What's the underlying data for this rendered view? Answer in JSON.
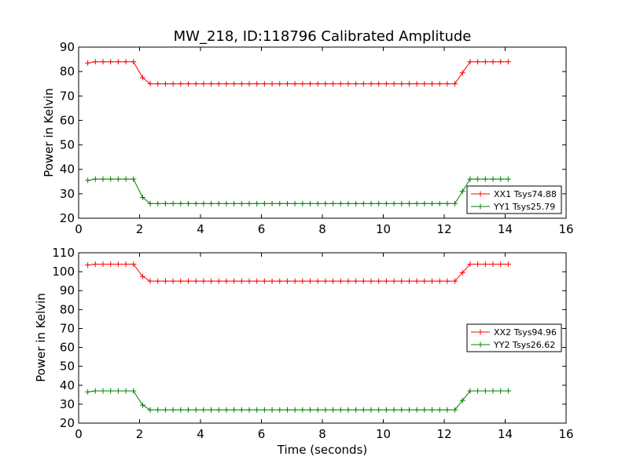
{
  "chart_data": [
    {
      "type": "line",
      "title": "MW_218, ID:118796 Calibrated Amplitude",
      "xlabel": "",
      "ylabel": "Power in Kelvin",
      "xlim": [
        0,
        16
      ],
      "ylim": [
        20,
        90
      ],
      "xticks": [
        0,
        2,
        4,
        6,
        8,
        10,
        12,
        14,
        16
      ],
      "yticks": [
        20,
        30,
        40,
        50,
        60,
        70,
        80,
        90
      ],
      "grid": false,
      "legend_position": "lower-right",
      "x": [
        0.3,
        0.55,
        0.8,
        1.05,
        1.3,
        1.55,
        1.8,
        2.1,
        2.35,
        2.6,
        2.85,
        3.1,
        3.35,
        3.6,
        3.85,
        4.1,
        4.35,
        4.6,
        4.85,
        5.1,
        5.35,
        5.6,
        5.85,
        6.1,
        6.35,
        6.6,
        6.85,
        7.1,
        7.35,
        7.6,
        7.85,
        8.1,
        8.35,
        8.6,
        8.85,
        9.1,
        9.35,
        9.6,
        9.85,
        10.1,
        10.35,
        10.6,
        10.85,
        11.1,
        11.35,
        11.6,
        11.85,
        12.1,
        12.35,
        12.6,
        12.85,
        13.1,
        13.35,
        13.6,
        13.85,
        14.1
      ],
      "series": [
        {
          "name": "XX1 Tsys74.88",
          "color": "#ff0000",
          "values": [
            83.5,
            84,
            84,
            84,
            84,
            84,
            84,
            77.5,
            75,
            75,
            75,
            75,
            75,
            75,
            75,
            75,
            75,
            75,
            75,
            75,
            75,
            75,
            75,
            75,
            75,
            75,
            75,
            75,
            75,
            75,
            75,
            75,
            75,
            75,
            75,
            75,
            75,
            75,
            75,
            75,
            75,
            75,
            75,
            75,
            75,
            75,
            75,
            75,
            75,
            79.5,
            84,
            84,
            84,
            84,
            84,
            84
          ]
        },
        {
          "name": "YY1 Tsys25.79",
          "color": "#008000",
          "values": [
            35.5,
            36,
            36,
            36,
            36,
            36,
            36,
            28.5,
            26,
            26,
            26,
            26,
            26,
            26,
            26,
            26,
            26,
            26,
            26,
            26,
            26,
            26,
            26,
            26,
            26,
            26,
            26,
            26,
            26,
            26,
            26,
            26,
            26,
            26,
            26,
            26,
            26,
            26,
            26,
            26,
            26,
            26,
            26,
            26,
            26,
            26,
            26,
            26,
            26,
            31,
            36,
            36,
            36,
            36,
            36,
            36
          ]
        }
      ]
    },
    {
      "type": "line",
      "title": "",
      "xlabel": "Time (seconds)",
      "ylabel": "Power in Kelvin",
      "xlim": [
        0,
        16
      ],
      "ylim": [
        20,
        110
      ],
      "xticks": [
        0,
        2,
        4,
        6,
        8,
        10,
        12,
        14,
        16
      ],
      "yticks": [
        20,
        30,
        40,
        50,
        60,
        70,
        80,
        90,
        100,
        110
      ],
      "grid": false,
      "legend_position": "center-right",
      "x": [
        0.3,
        0.55,
        0.8,
        1.05,
        1.3,
        1.55,
        1.8,
        2.1,
        2.35,
        2.6,
        2.85,
        3.1,
        3.35,
        3.6,
        3.85,
        4.1,
        4.35,
        4.6,
        4.85,
        5.1,
        5.35,
        5.6,
        5.85,
        6.1,
        6.35,
        6.6,
        6.85,
        7.1,
        7.35,
        7.6,
        7.85,
        8.1,
        8.35,
        8.6,
        8.85,
        9.1,
        9.35,
        9.6,
        9.85,
        10.1,
        10.35,
        10.6,
        10.85,
        11.1,
        11.35,
        11.6,
        11.85,
        12.1,
        12.35,
        12.6,
        12.85,
        13.1,
        13.35,
        13.6,
        13.85,
        14.1
      ],
      "series": [
        {
          "name": "XX2 Tsys94.96",
          "color": "#ff0000",
          "values": [
            103.5,
            104,
            104,
            104,
            104,
            104,
            104,
            97.5,
            95,
            95,
            95,
            95,
            95,
            95,
            95,
            95,
            95,
            95,
            95,
            95,
            95,
            95,
            95,
            95,
            95,
            95,
            95,
            95,
            95,
            95,
            95,
            95,
            95,
            95,
            95,
            95,
            95,
            95,
            95,
            95,
            95,
            95,
            95,
            95,
            95,
            95,
            95,
            95,
            95,
            99.5,
            104,
            104,
            104,
            104,
            104,
            104
          ]
        },
        {
          "name": "YY2 Tsys26.62",
          "color": "#008000",
          "values": [
            36.5,
            37,
            37,
            37,
            37,
            37,
            37,
            29.5,
            27,
            27,
            27,
            27,
            27,
            27,
            27,
            27,
            27,
            27,
            27,
            27,
            27,
            27,
            27,
            27,
            27,
            27,
            27,
            27,
            27,
            27,
            27,
            27,
            27,
            27,
            27,
            27,
            27,
            27,
            27,
            27,
            27,
            27,
            27,
            27,
            27,
            27,
            27,
            27,
            27,
            32,
            37,
            37,
            37,
            37,
            37,
            37
          ]
        }
      ]
    }
  ]
}
